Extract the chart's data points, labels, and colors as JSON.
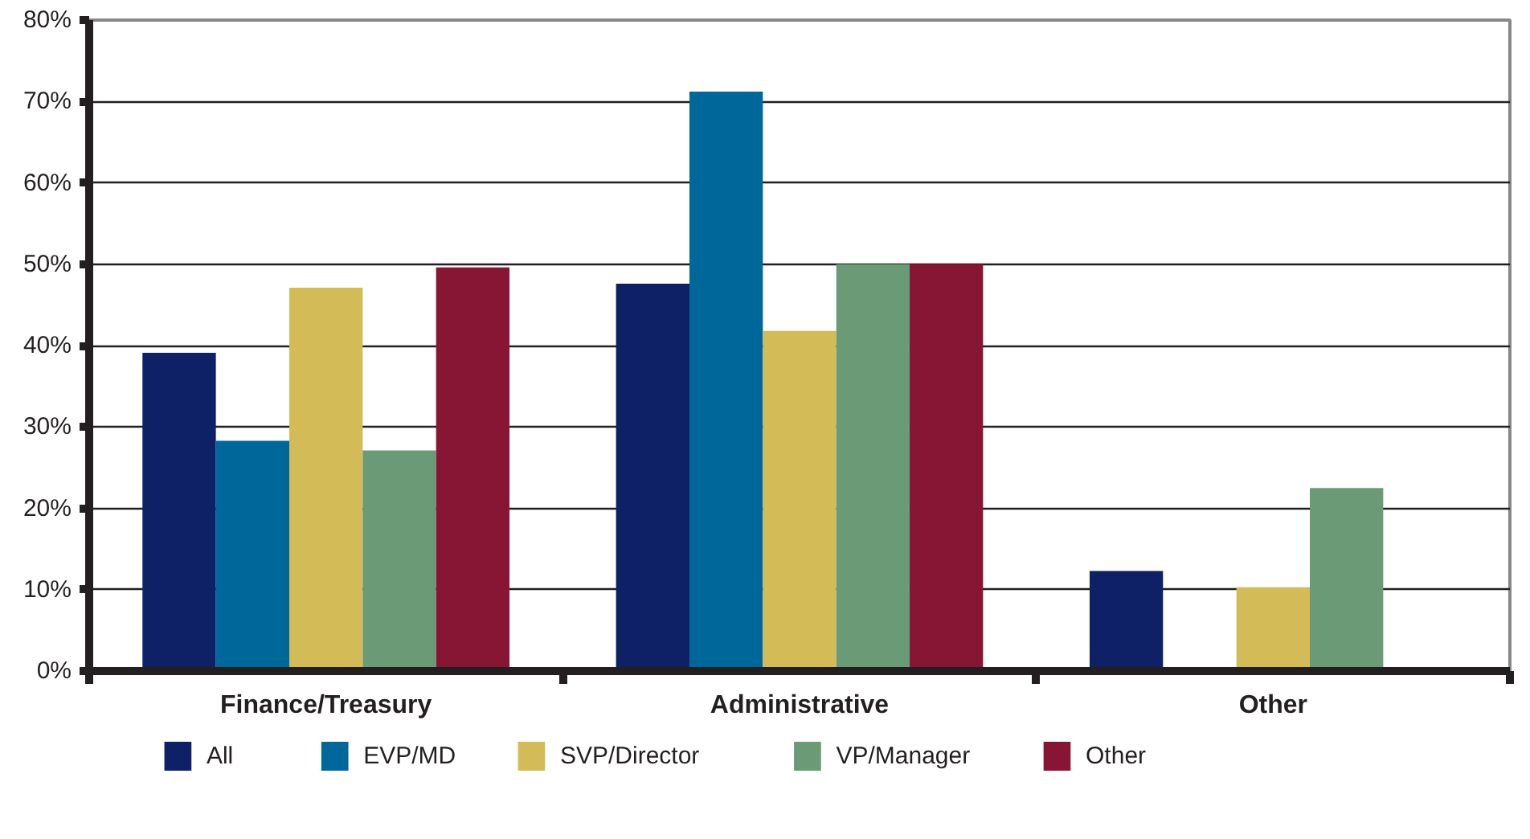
{
  "chart_data": {
    "type": "bar",
    "categories": [
      "Finance/Treasury",
      "Administrative",
      "Other"
    ],
    "series": [
      {
        "name": "All",
        "color": "#0e2066",
        "values": [
          39.1,
          47.6,
          12.3
        ]
      },
      {
        "name": "EVP/MD",
        "color": "#00679b",
        "values": [
          28.3,
          71.2,
          null
        ]
      },
      {
        "name": "SVP/Director",
        "color": "#d3bb58",
        "values": [
          47.1,
          41.8,
          10.3
        ]
      },
      {
        "name": "VP/Manager",
        "color": "#6b9b76",
        "values": [
          27.1,
          50,
          22.5
        ]
      },
      {
        "name": "Other",
        "color": "#871634",
        "values": [
          49.6,
          50,
          null
        ]
      }
    ],
    "ylim": [
      0,
      80
    ],
    "yticks": [
      {
        "value": 0,
        "label": "0%"
      },
      {
        "value": 10,
        "label": "10%"
      },
      {
        "value": 20,
        "label": "20%"
      },
      {
        "value": 30,
        "label": "30%"
      },
      {
        "value": 40,
        "label": "40%"
      },
      {
        "value": 50,
        "label": "50%"
      },
      {
        "value": 60,
        "label": "60%"
      },
      {
        "value": 70,
        "label": "70%"
      },
      {
        "value": 80,
        "label": "80%"
      }
    ],
    "grid": "y",
    "legend": "bottom"
  }
}
